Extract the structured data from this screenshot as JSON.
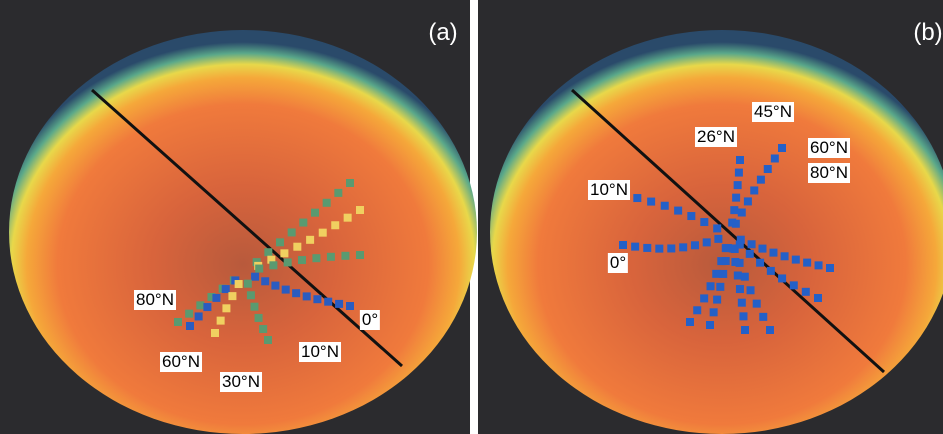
{
  "panels": [
    {
      "label": "(a)",
      "annotations": [
        "80°N",
        "60°N",
        "30°N",
        "10°N",
        "0°"
      ]
    },
    {
      "label": "(b)",
      "annotations": [
        "45°N",
        "26°N",
        "60°N",
        "80°N",
        "10°N",
        "0°"
      ]
    }
  ]
}
